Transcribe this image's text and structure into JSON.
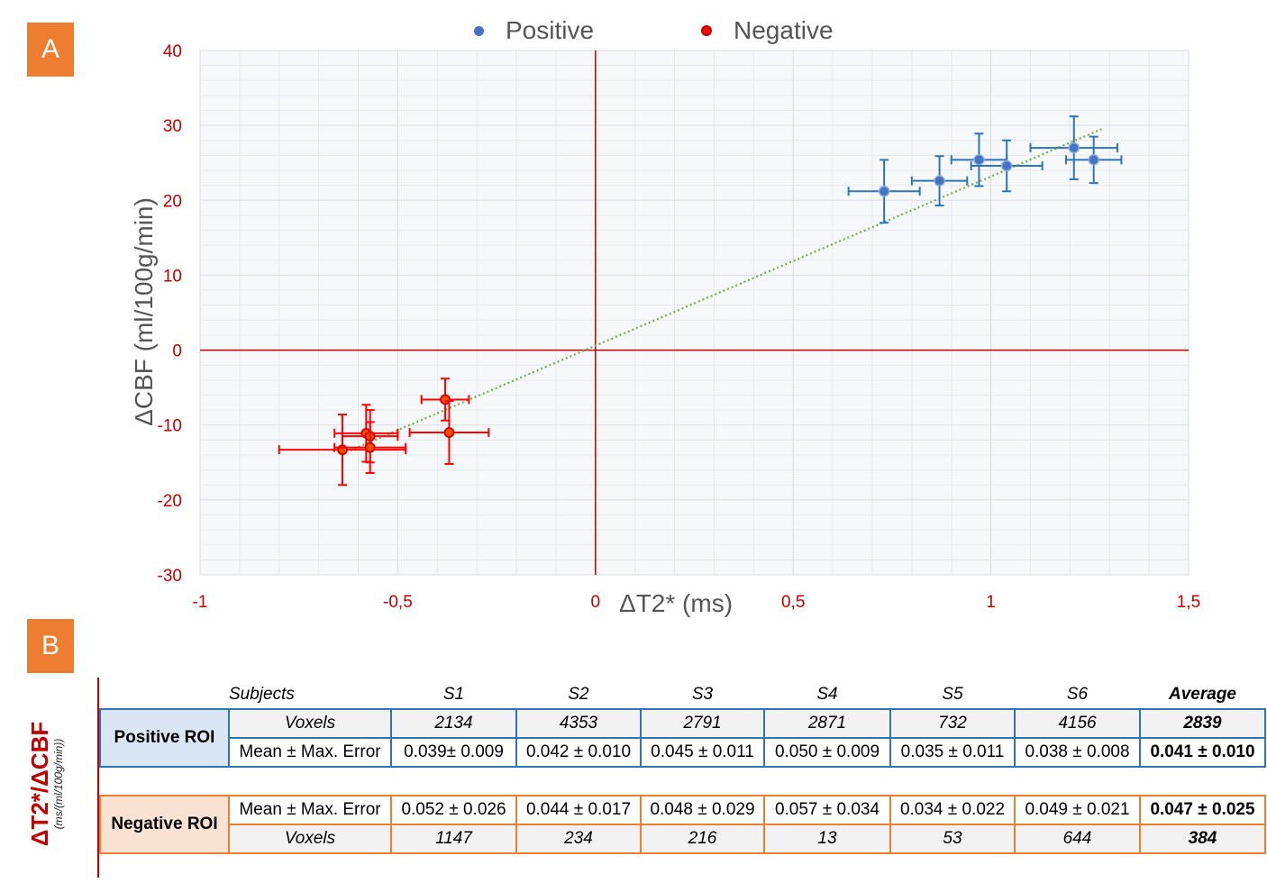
{
  "panel_a_label": "A",
  "panel_b_label": "B",
  "legend": {
    "positive": "Positive",
    "negative": "Negative"
  },
  "colors": {
    "positive": "#4472c4",
    "positive_err": "#2e75b6",
    "negative": "#ff0000",
    "axis_tick": "#c00000",
    "zero_line": "#c00000",
    "trendline": "#70ad47",
    "panel_label_bg": "#ed7d31"
  },
  "chart_data": {
    "type": "scatter",
    "xlabel": "ΔT2* (ms)",
    "ylabel": "ΔCBF (ml/100g/min)",
    "xlim": [
      -1,
      1.5
    ],
    "ylim": [
      -30,
      40
    ],
    "x_ticks": [
      "-1",
      "-0,5",
      "0",
      "0,5",
      "1",
      "1,5"
    ],
    "x_tick_values": [
      -1,
      -0.5,
      0,
      0.5,
      1,
      1.5
    ],
    "y_ticks": [
      "40",
      "30",
      "20",
      "10",
      "0",
      "-10",
      "-20",
      "-30"
    ],
    "y_tick_values": [
      40,
      30,
      20,
      10,
      0,
      -10,
      -20,
      -30
    ],
    "grid": true,
    "legend_position": "top-center",
    "series": [
      {
        "name": "Positive",
        "points": [
          {
            "x": 0.73,
            "y": 21.2,
            "xerr": 0.09,
            "yerr": 4.2
          },
          {
            "x": 0.87,
            "y": 22.6,
            "xerr": 0.07,
            "yerr": 3.3
          },
          {
            "x": 0.97,
            "y": 25.4,
            "xerr": 0.07,
            "yerr": 3.5
          },
          {
            "x": 1.04,
            "y": 24.6,
            "xerr": 0.09,
            "yerr": 3.4
          },
          {
            "x": 1.21,
            "y": 27.0,
            "xerr": 0.11,
            "yerr": 4.2
          },
          {
            "x": 1.26,
            "y": 25.4,
            "xerr": 0.07,
            "yerr": 3.1
          }
        ]
      },
      {
        "name": "Negative",
        "points": [
          {
            "x": -0.64,
            "y": -13.3,
            "xerr": 0.16,
            "yerr": 4.7
          },
          {
            "x": -0.58,
            "y": -11.1,
            "xerr": 0.08,
            "yerr": 3.8
          },
          {
            "x": -0.57,
            "y": -11.5,
            "xerr": 0.07,
            "yerr": 3.5
          },
          {
            "x": -0.57,
            "y": -13.0,
            "xerr": 0.09,
            "yerr": 3.4
          },
          {
            "x": -0.38,
            "y": -6.6,
            "xerr": 0.06,
            "yerr": 2.8
          },
          {
            "x": -0.37,
            "y": -11.0,
            "xerr": 0.1,
            "yerr": 4.2
          }
        ]
      }
    ],
    "trendline": {
      "x1": -0.62,
      "y1": -13.4,
      "x2": 1.28,
      "y2": 29.5
    }
  },
  "table": {
    "side_title": "ΔT2*/ΔCBF",
    "side_unit": "(ms/(ml/100g/min))",
    "subjects_label": "Subjects",
    "subjects": [
      "S1",
      "S2",
      "S3",
      "S4",
      "S5",
      "S6"
    ],
    "average_label": "Average",
    "positive": {
      "label": "Positive ROI",
      "voxels_label": "Voxels",
      "voxels": [
        "2134",
        "4353",
        "2791",
        "2871",
        "732",
        "4156"
      ],
      "voxels_avg": "2839",
      "mean_label": "Mean ± Max. Error",
      "mean": [
        "0.039± 0.009",
        "0.042 ± 0.010",
        "0.045 ± 0.011",
        "0.050 ± 0.009",
        "0.035 ± 0.011",
        "0.038 ± 0.008"
      ],
      "mean_avg": "0.041 ± 0.010"
    },
    "negative": {
      "label": "Negative ROI",
      "mean_label": "Mean ± Max. Error",
      "mean": [
        "0.052 ± 0.026",
        "0.044 ± 0.017",
        "0.048 ± 0.029",
        "0.057 ± 0.034",
        "0.034 ± 0.022",
        "0.049 ± 0.021"
      ],
      "mean_avg": "0.047 ± 0.025",
      "voxels_label": "Voxels",
      "voxels": [
        "1147",
        "234",
        "216",
        "13",
        "53",
        "644"
      ],
      "voxels_avg": "384"
    }
  }
}
